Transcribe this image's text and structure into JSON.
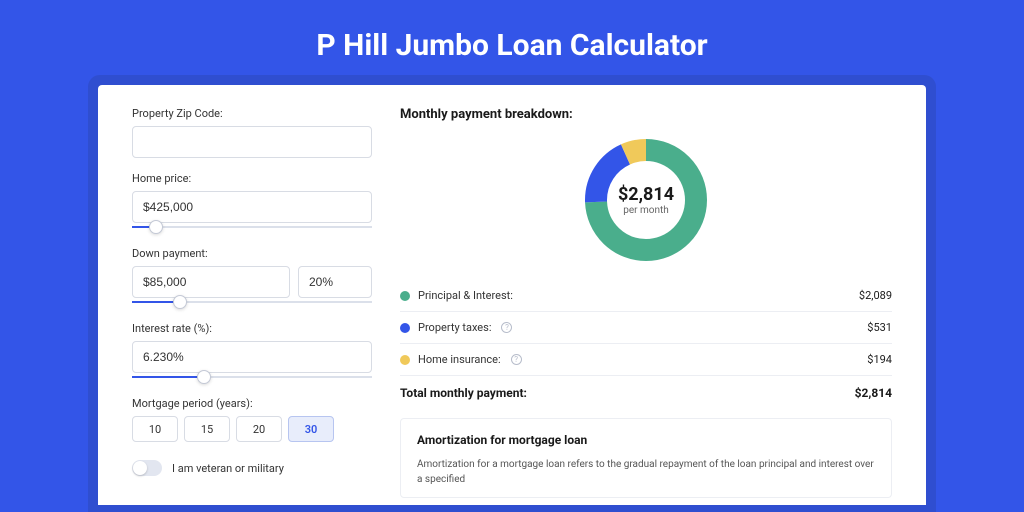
{
  "title": "P Hill Jumbo Loan Calculator",
  "colors": {
    "page_bg": "#3355e8",
    "card_bg": "#ffffff",
    "accent": "#3355e8",
    "slider_track": "#dbe0ea"
  },
  "form": {
    "zip": {
      "label": "Property Zip Code:",
      "value": ""
    },
    "home_price": {
      "label": "Home price:",
      "value": "$425,000",
      "slider_pct": 10
    },
    "down_payment": {
      "label": "Down payment:",
      "value": "$85,000",
      "pct": "20%",
      "slider_pct": 20
    },
    "interest": {
      "label": "Interest rate (%):",
      "value": "6.230%",
      "slider_pct": 30
    },
    "period": {
      "label": "Mortgage period (years):",
      "options": [
        "10",
        "15",
        "20",
        "30"
      ],
      "selected": "30"
    },
    "veteran": {
      "label": "I am veteran or military",
      "on": false
    }
  },
  "breakdown": {
    "title": "Monthly payment breakdown:",
    "donut": {
      "amount": "$2,814",
      "sub": "per month",
      "slices": [
        {
          "key": "principal_interest",
          "color": "#4aae8c",
          "value": 2089
        },
        {
          "key": "property_taxes",
          "color": "#3355e8",
          "value": 531
        },
        {
          "key": "home_insurance",
          "color": "#f0c95a",
          "value": 194
        }
      ],
      "stroke_width": 22
    },
    "items": [
      {
        "key": "principal_interest",
        "label": "Principal & Interest:",
        "color": "#4aae8c",
        "value": "$2,089",
        "info": false
      },
      {
        "key": "property_taxes",
        "label": "Property taxes:",
        "color": "#3355e8",
        "value": "$531",
        "info": true
      },
      {
        "key": "home_insurance",
        "label": "Home insurance:",
        "color": "#f0c95a",
        "value": "$194",
        "info": true
      }
    ],
    "total": {
      "label": "Total monthly payment:",
      "value": "$2,814"
    }
  },
  "amortization": {
    "title": "Amortization for mortgage loan",
    "body": "Amortization for a mortgage loan refers to the gradual repayment of the loan principal and interest over a specified"
  }
}
